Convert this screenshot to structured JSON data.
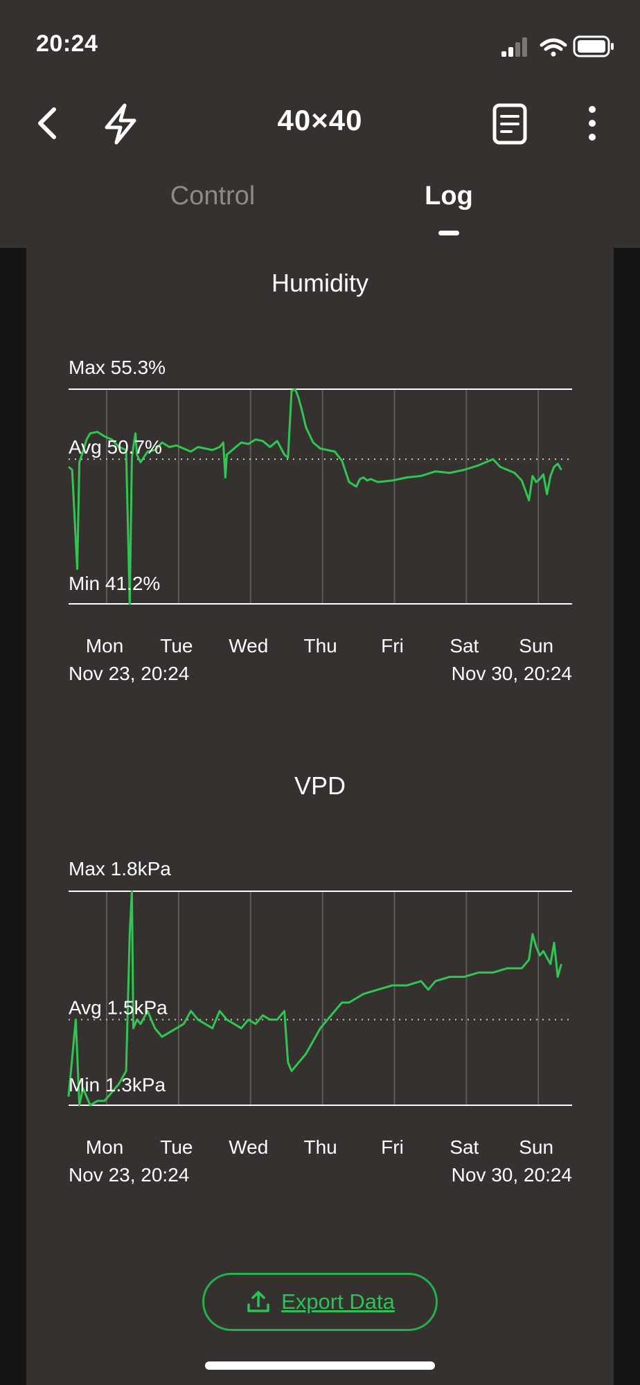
{
  "status": {
    "time": "20:24"
  },
  "header": {
    "title": "40×40"
  },
  "tabs": [
    {
      "label": "Control",
      "active": false
    },
    {
      "label": "Log",
      "active": true
    }
  ],
  "icons": {
    "back": "chevron-left-icon",
    "bolt": "lightning-bolt-icon",
    "doc": "document-icon",
    "more": "more-vertical-icon",
    "export": "upload-icon"
  },
  "colors": {
    "accent": "#22b14c",
    "line": "#2fc653",
    "background": "#35312f"
  },
  "chart_data": [
    {
      "type": "line",
      "title": "Humidity",
      "max_label": "Max 55.3%",
      "avg_label": "Avg 50.7%",
      "min_label": "Min 41.2%",
      "ylim": [
        41.2,
        55.3
      ],
      "avg": 50.7,
      "xlim": [
        0,
        7
      ],
      "day_labels": [
        "Mon",
        "Tue",
        "Wed",
        "Thu",
        "Fri",
        "Sat",
        "Sun"
      ],
      "day_positions": [
        0.53,
        1.53,
        2.53,
        3.53,
        4.53,
        5.53,
        6.53
      ],
      "start_label": "Nov 23, 20:24",
      "end_label": "Nov 30, 20:24",
      "series": [
        {
          "x": [
            0,
            0.05,
            0.12,
            0.15,
            0.2,
            0.25,
            0.3,
            0.4,
            0.5,
            0.6,
            0.7,
            0.8,
            0.85,
            0.88,
            0.9,
            0.93,
            0.95,
            1.0,
            1.1,
            1.2,
            1.3,
            1.4,
            1.5,
            1.6,
            1.7,
            1.8,
            2.0,
            2.1,
            2.15,
            2.18,
            2.2,
            2.3,
            2.4,
            2.5,
            2.6,
            2.7,
            2.8,
            2.9,
            3.0,
            3.05,
            3.1,
            3.15,
            3.2,
            3.25,
            3.3,
            3.4,
            3.5,
            3.6,
            3.7,
            3.8,
            3.9,
            4.0,
            4.05,
            4.1,
            4.15,
            4.2,
            4.3,
            4.5,
            4.7,
            4.9,
            5.1,
            5.3,
            5.5,
            5.7,
            5.9,
            6.0,
            6.1,
            6.2,
            6.3,
            6.4,
            6.45,
            6.5,
            6.55,
            6.6,
            6.65,
            6.7,
            6.75,
            6.8,
            6.85
          ],
          "y": [
            50.2,
            50.0,
            43.5,
            50.5,
            51.2,
            52.0,
            52.4,
            52.5,
            52.2,
            52.0,
            51.5,
            51.3,
            41.2,
            50.8,
            51.5,
            52.4,
            51.0,
            50.5,
            51.2,
            51.3,
            51.8,
            51.5,
            51.6,
            51.4,
            51.2,
            51.5,
            51.3,
            51.5,
            51.8,
            49.5,
            51.0,
            51.4,
            51.8,
            51.7,
            52.0,
            51.9,
            51.5,
            51.9,
            51.0,
            50.8,
            55.2,
            55.3,
            54.7,
            53.8,
            52.8,
            51.8,
            51.4,
            51.3,
            51.2,
            50.6,
            49.2,
            48.9,
            49.4,
            49.5,
            49.3,
            49.4,
            49.2,
            49.3,
            49.5,
            49.6,
            49.9,
            49.8,
            50.0,
            50.3,
            50.7,
            50.2,
            50.0,
            49.8,
            49.3,
            48.0,
            49.6,
            49.2,
            49.4,
            49.7,
            48.4,
            49.6,
            50.2,
            50.4,
            50.0
          ]
        }
      ]
    },
    {
      "type": "line",
      "title": "VPD",
      "max_label": "Max 1.8kPa",
      "avg_label": "Avg 1.5kPa",
      "min_label": "Min 1.3kPa",
      "ylim": [
        1.3,
        1.8
      ],
      "avg": 1.5,
      "xlim": [
        0,
        7
      ],
      "day_labels": [
        "Mon",
        "Tue",
        "Wed",
        "Thu",
        "Fri",
        "Sat",
        "Sun"
      ],
      "day_positions": [
        0.53,
        1.53,
        2.53,
        3.53,
        4.53,
        5.53,
        6.53
      ],
      "start_label": "Nov 23, 20:24",
      "end_label": "Nov 30, 20:24",
      "series": [
        {
          "x": [
            0,
            0.1,
            0.15,
            0.2,
            0.3,
            0.4,
            0.5,
            0.6,
            0.7,
            0.8,
            0.85,
            0.88,
            0.9,
            0.95,
            1.0,
            1.1,
            1.2,
            1.3,
            1.4,
            1.5,
            1.6,
            1.7,
            1.8,
            2.0,
            2.1,
            2.2,
            2.3,
            2.4,
            2.5,
            2.6,
            2.7,
            2.8,
            2.9,
            3.0,
            3.05,
            3.1,
            3.2,
            3.3,
            3.4,
            3.5,
            3.6,
            3.7,
            3.8,
            3.9,
            4.0,
            4.1,
            4.3,
            4.5,
            4.7,
            4.9,
            5.0,
            5.1,
            5.3,
            5.5,
            5.7,
            5.9,
            6.1,
            6.3,
            6.4,
            6.45,
            6.5,
            6.55,
            6.6,
            6.7,
            6.75,
            6.8,
            6.85
          ],
          "y": [
            1.32,
            1.5,
            1.3,
            1.34,
            1.3,
            1.31,
            1.31,
            1.33,
            1.35,
            1.38,
            1.7,
            1.8,
            1.48,
            1.5,
            1.49,
            1.52,
            1.48,
            1.46,
            1.47,
            1.48,
            1.49,
            1.52,
            1.5,
            1.48,
            1.52,
            1.5,
            1.49,
            1.48,
            1.5,
            1.49,
            1.51,
            1.5,
            1.5,
            1.52,
            1.4,
            1.38,
            1.4,
            1.42,
            1.45,
            1.48,
            1.5,
            1.52,
            1.54,
            1.54,
            1.55,
            1.56,
            1.57,
            1.58,
            1.58,
            1.59,
            1.57,
            1.59,
            1.6,
            1.6,
            1.61,
            1.61,
            1.62,
            1.62,
            1.64,
            1.7,
            1.67,
            1.65,
            1.66,
            1.63,
            1.68,
            1.6,
            1.63
          ]
        }
      ]
    }
  ],
  "export": {
    "label": "Export Data"
  }
}
